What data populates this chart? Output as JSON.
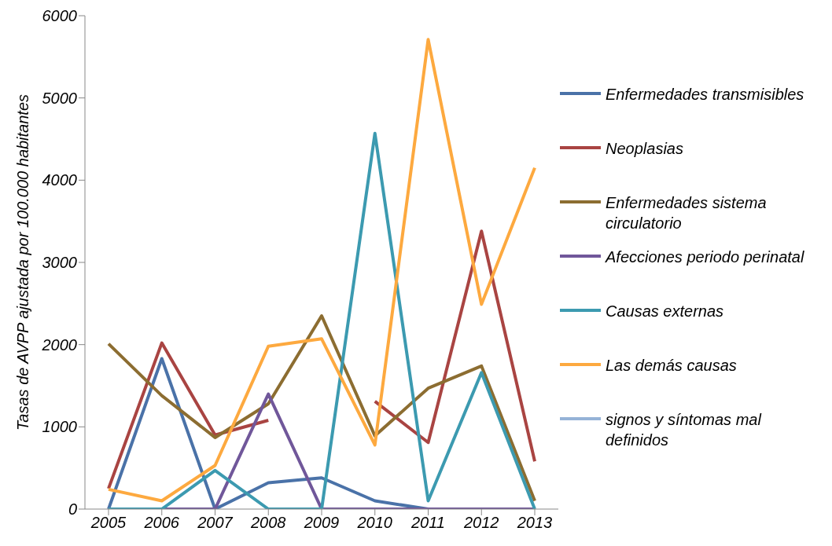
{
  "chart_data": {
    "type": "line",
    "ylabel": "Tasas de AVPP ajustada por 100.000 habitantes",
    "categories": [
      "2005",
      "2006",
      "2007",
      "2008",
      "2009",
      "2010",
      "2011",
      "2012",
      "2013"
    ],
    "series": [
      {
        "name": "Enfermedades transmisibles",
        "color": "#4a72a8",
        "values": [
          0,
          1830,
          0,
          320,
          380,
          100,
          0,
          0,
          0
        ]
      },
      {
        "name": "Neoplasias",
        "color": "#a94442",
        "values": [
          250,
          2020,
          900,
          1080,
          null,
          1310,
          810,
          3380,
          580
        ]
      },
      {
        "name": "Enfermedades sistema circulatorio",
        "color": "#8c6d31",
        "values": [
          2010,
          1380,
          870,
          1280,
          2350,
          890,
          1470,
          1740,
          100
        ]
      },
      {
        "name": "Afecciones periodo perinatal",
        "color": "#70579a",
        "values": [
          0,
          0,
          0,
          1400,
          0,
          0,
          0,
          0,
          0
        ]
      },
      {
        "name": "Causas externas",
        "color": "#3c9ab0",
        "values": [
          0,
          0,
          470,
          0,
          0,
          4570,
          100,
          1660,
          0
        ]
      },
      {
        "name": "Las demás causas",
        "color": "#fda93f",
        "values": [
          240,
          100,
          530,
          1980,
          2070,
          780,
          5710,
          2490,
          4150
        ]
      },
      {
        "name": "signos y síntomas mal definidos",
        "color": "#95b3d7",
        "values": [
          null,
          null,
          null,
          null,
          null,
          null,
          null,
          null,
          null
        ]
      }
    ],
    "ylim": [
      0,
      6000
    ],
    "yticks": [
      0,
      1000,
      2000,
      3000,
      4000,
      5000,
      6000
    ],
    "grid": false,
    "legend": "right",
    "marker": "none",
    "line_style": "solid"
  }
}
